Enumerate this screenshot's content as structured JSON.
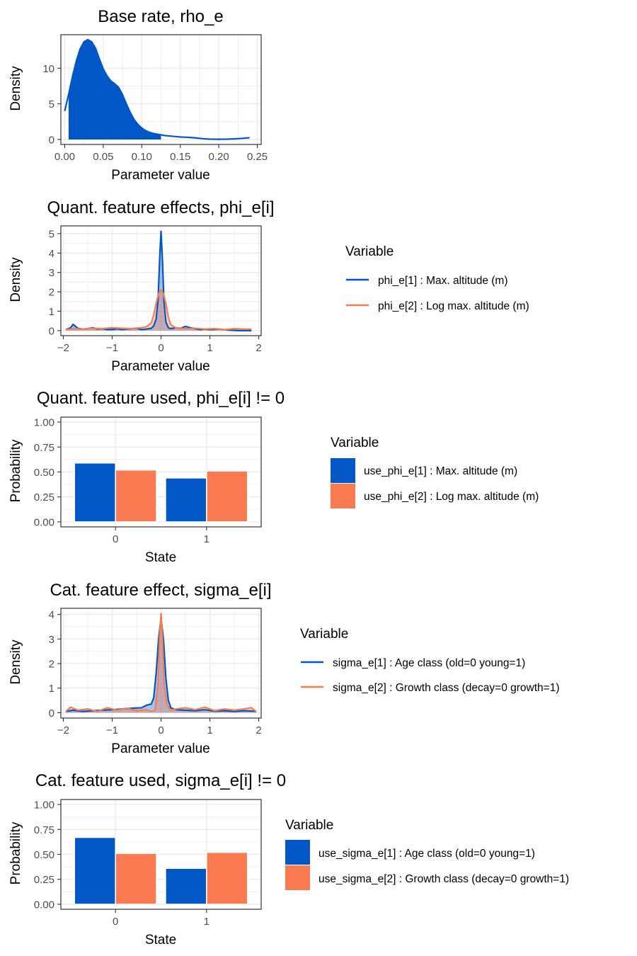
{
  "colors": {
    "series1": "#0057C5",
    "series2": "#FA7B51",
    "grid": "#EBEBEB",
    "panel_border": "#333333",
    "text": "#000000",
    "tick_text": "#4D4D4D"
  },
  "chart_data": [
    {
      "type": "area",
      "title": "Base rate, rho_e",
      "xlabel": "Parameter value",
      "ylabel": "Density",
      "xlim": [
        -0.005,
        0.255
      ],
      "ylim": [
        -0.7,
        14.7
      ],
      "xticks": [
        0.0,
        0.05,
        0.1,
        0.15,
        0.2,
        0.25
      ],
      "xtick_labels": [
        "0.00",
        "0.05",
        "0.10",
        "0.15",
        "0.20",
        "0.25"
      ],
      "yticks": [
        0,
        5,
        10
      ],
      "ytick_labels": [
        "0",
        "5",
        "10"
      ],
      "grid": true,
      "shaded_interval": [
        0.005,
        0.125
      ],
      "series": [
        {
          "x": [
            0.0,
            0.005,
            0.01,
            0.015,
            0.02,
            0.025,
            0.03,
            0.035,
            0.04,
            0.045,
            0.05,
            0.055,
            0.06,
            0.065,
            0.07,
            0.075,
            0.08,
            0.085,
            0.09,
            0.095,
            0.1,
            0.105,
            0.11,
            0.115,
            0.12,
            0.125,
            0.13,
            0.14,
            0.15,
            0.16,
            0.17,
            0.18,
            0.19,
            0.2,
            0.21,
            0.22,
            0.23,
            0.24
          ],
          "y": [
            4.0,
            6.3,
            8.8,
            11.0,
            12.7,
            13.7,
            14.0,
            13.7,
            12.8,
            11.3,
            9.9,
            8.9,
            8.2,
            7.8,
            7.3,
            6.3,
            5.0,
            3.8,
            2.8,
            2.1,
            1.6,
            1.25,
            1.0,
            0.85,
            0.75,
            0.65,
            0.55,
            0.45,
            0.35,
            0.3,
            0.22,
            0.1,
            0.04,
            0.03,
            0.04,
            0.08,
            0.15,
            0.25
          ]
        }
      ]
    },
    {
      "type": "line",
      "title": "Quant. feature effects, phi_e[i]",
      "xlabel": "Parameter value",
      "ylabel": "Density",
      "xlim": [
        -2.05,
        2.05
      ],
      "ylim": [
        -0.26,
        5.4
      ],
      "xticks": [
        -2,
        -1,
        0,
        1,
        2
      ],
      "xtick_labels": [
        "−2",
        "−1",
        "0",
        "1",
        "2"
      ],
      "yticks": [
        0,
        1,
        2,
        3,
        4,
        5
      ],
      "ytick_labels": [
        "0",
        "1",
        "2",
        "3",
        "4",
        "5"
      ],
      "grid": true,
      "legend_title": "Variable",
      "legend_position": "right",
      "series": [
        {
          "name": "phi_e[1] : Max. altitude (m)",
          "x": [
            -1.95,
            -1.85,
            -1.8,
            -1.75,
            -1.7,
            -1.6,
            -1.5,
            -1.4,
            -1.3,
            -1.2,
            -1.1,
            -1.0,
            -0.9,
            -0.8,
            -0.7,
            -0.6,
            -0.5,
            -0.4,
            -0.3,
            -0.2,
            -0.15,
            -0.1,
            -0.06,
            -0.03,
            0.0,
            0.03,
            0.06,
            0.1,
            0.15,
            0.2,
            0.3,
            0.4,
            0.5,
            0.6,
            0.7,
            0.8,
            0.9,
            1.0,
            1.2,
            1.4,
            1.6,
            1.85
          ],
          "y": [
            0.05,
            0.15,
            0.32,
            0.22,
            0.12,
            0.08,
            0.1,
            0.15,
            0.08,
            0.1,
            0.05,
            0.06,
            0.1,
            0.05,
            0.08,
            0.1,
            0.12,
            0.05,
            0.08,
            0.12,
            0.25,
            0.6,
            1.6,
            3.6,
            5.15,
            3.6,
            1.5,
            0.45,
            0.15,
            0.1,
            0.15,
            0.12,
            0.22,
            0.15,
            0.1,
            0.05,
            0.08,
            0.05,
            0.08,
            0.02,
            0.0,
            0.0
          ]
        },
        {
          "name": "phi_e[2] : Log max. altitude (m)",
          "x": [
            -1.95,
            -1.8,
            -1.6,
            -1.4,
            -1.2,
            -1.0,
            -0.8,
            -0.6,
            -0.4,
            -0.3,
            -0.2,
            -0.15,
            -0.1,
            -0.05,
            0.0,
            0.05,
            0.1,
            0.15,
            0.2,
            0.3,
            0.5,
            0.7,
            0.9,
            1.1,
            1.3,
            1.5,
            1.7,
            1.85
          ],
          "y": [
            0.05,
            0.1,
            0.08,
            0.12,
            0.1,
            0.15,
            0.12,
            0.1,
            0.15,
            0.2,
            0.4,
            0.8,
            1.4,
            1.9,
            2.1,
            1.9,
            1.4,
            0.7,
            0.3,
            0.15,
            0.1,
            0.12,
            0.08,
            0.1,
            0.05,
            0.1,
            0.08,
            0.08
          ]
        }
      ]
    },
    {
      "type": "bar",
      "title": "Quant. feature used, phi_e[i] != 0",
      "xlabel": "State",
      "ylabel": "Probability",
      "categories": [
        "0",
        "1"
      ],
      "ylim": [
        -0.05,
        1.05
      ],
      "yticks": [
        0.0,
        0.25,
        0.5,
        0.75,
        1.0
      ],
      "ytick_labels": [
        "0.00",
        "0.25",
        "0.50",
        "0.75",
        "1.00"
      ],
      "grid": true,
      "legend_title": "Variable",
      "legend_position": "right",
      "series": [
        {
          "name": "use_phi_e[1] : Max. altitude (m)",
          "values": [
            0.59,
            0.44
          ]
        },
        {
          "name": "use_phi_e[2] : Log max. altitude (m)",
          "values": [
            0.52,
            0.51
          ]
        }
      ]
    },
    {
      "type": "line",
      "title": "Cat. feature effect, sigma_e[i]",
      "xlabel": "Parameter value",
      "ylabel": "Density",
      "xlim": [
        -2.05,
        2.05
      ],
      "ylim": [
        -0.22,
        4.25
      ],
      "xticks": [
        -2,
        -1,
        0,
        1,
        2
      ],
      "xtick_labels": [
        "−2",
        "−1",
        "0",
        "1",
        "2"
      ],
      "yticks": [
        0,
        1,
        2,
        3,
        4
      ],
      "ytick_labels": [
        "0",
        "1",
        "2",
        "3",
        "4"
      ],
      "grid": true,
      "legend_title": "Variable",
      "legend_position": "right",
      "series": [
        {
          "name": "sigma_e[1] : Age class (old=0 young=1)",
          "x": [
            -1.95,
            -1.8,
            -1.6,
            -1.4,
            -1.2,
            -1.0,
            -0.8,
            -0.6,
            -0.4,
            -0.3,
            -0.2,
            -0.15,
            -0.1,
            -0.05,
            0.0,
            0.05,
            0.1,
            0.15,
            0.2,
            0.3,
            0.5,
            0.7,
            0.9,
            1.1,
            1.3,
            1.5,
            1.7,
            1.95
          ],
          "y": [
            0.05,
            0.1,
            0.05,
            0.08,
            0.1,
            0.12,
            0.15,
            0.18,
            0.2,
            0.3,
            0.35,
            0.6,
            1.6,
            3.0,
            3.85,
            3.0,
            1.4,
            0.5,
            0.2,
            0.12,
            0.1,
            0.08,
            0.12,
            0.06,
            0.08,
            0.05,
            0.08,
            0.06
          ]
        },
        {
          "name": "sigma_e[2] : Growth class (decay=0 growth=1)",
          "x": [
            -1.95,
            -1.85,
            -1.7,
            -1.5,
            -1.3,
            -1.1,
            -0.9,
            -0.7,
            -0.5,
            -0.3,
            -0.2,
            -0.12,
            -0.06,
            -0.03,
            0.0,
            0.03,
            0.06,
            0.12,
            0.2,
            0.3,
            0.5,
            0.7,
            0.9,
            1.1,
            1.3,
            1.5,
            1.7,
            1.85,
            1.95
          ],
          "y": [
            0.05,
            0.22,
            0.1,
            0.15,
            0.05,
            0.2,
            0.1,
            0.18,
            0.08,
            0.12,
            0.05,
            0.1,
            1.2,
            3.0,
            4.05,
            3.0,
            1.2,
            0.3,
            0.1,
            0.15,
            0.2,
            0.12,
            0.22,
            0.08,
            0.15,
            0.1,
            0.15,
            0.2,
            0.05
          ]
        }
      ]
    },
    {
      "type": "bar",
      "title": "Cat. feature used, sigma_e[i] != 0",
      "xlabel": "State",
      "ylabel": "Probability",
      "categories": [
        "0",
        "1"
      ],
      "ylim": [
        -0.05,
        1.05
      ],
      "yticks": [
        0.0,
        0.25,
        0.5,
        0.75,
        1.0
      ],
      "ytick_labels": [
        "0.00",
        "0.25",
        "0.50",
        "0.75",
        "1.00"
      ],
      "grid": true,
      "legend_title": "Variable",
      "legend_position": "right",
      "series": [
        {
          "name": "use_sigma_e[1] : Age class (old=0 young=1)",
          "values": [
            0.67,
            0.36
          ]
        },
        {
          "name": "use_sigma_e[2] : Growth class (decay=0 growth=1)",
          "values": [
            0.51,
            0.52
          ]
        }
      ]
    }
  ]
}
